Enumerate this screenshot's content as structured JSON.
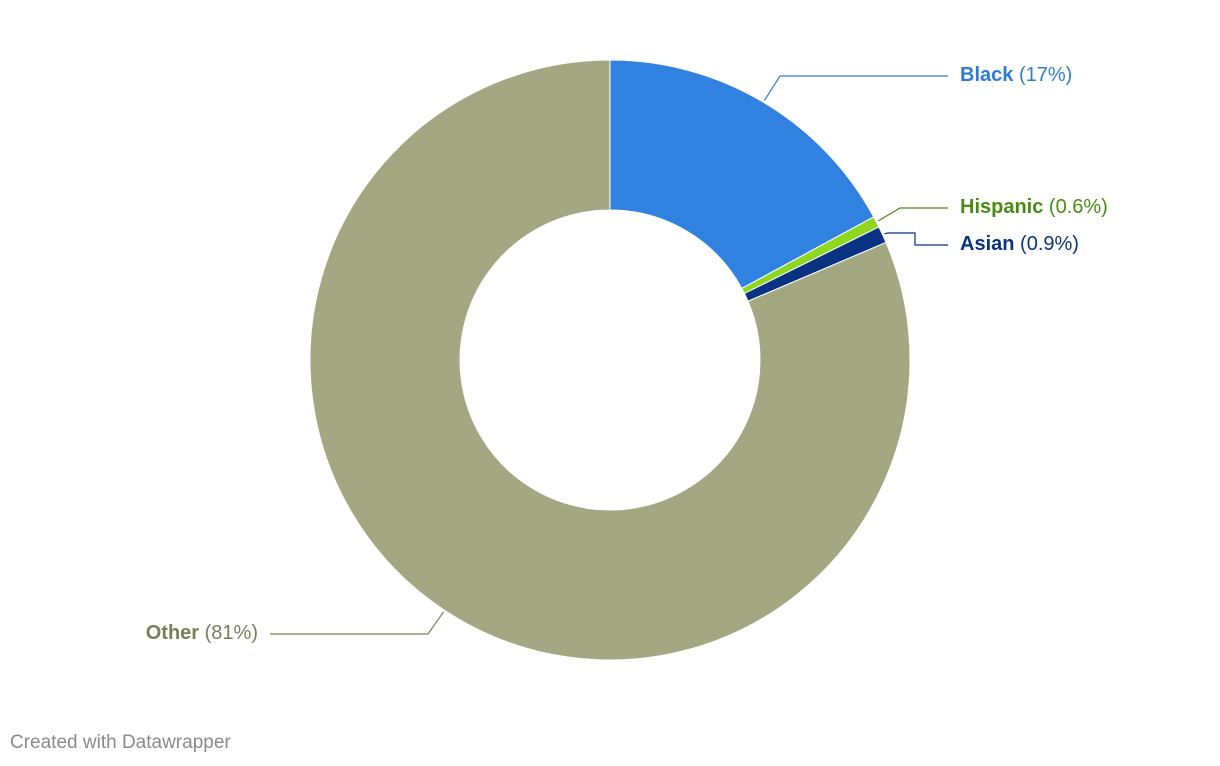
{
  "chart_data": {
    "type": "donut",
    "categories": [
      "Black",
      "Hispanic",
      "Asian",
      "Other"
    ],
    "values": [
      17,
      0.6,
      0.9,
      81
    ],
    "value_labels": [
      "(17%)",
      "(0.6%)",
      "(0.9%)",
      "(81%)"
    ],
    "colors": [
      "#3182e0",
      "#8fd61e",
      "#0a3282",
      "#a3a883"
    ],
    "label_colors": [
      "#2d7dd8",
      "#4a8c12",
      "#0a3282",
      "#7b7f58"
    ]
  },
  "credit": "Created with Datawrapper"
}
